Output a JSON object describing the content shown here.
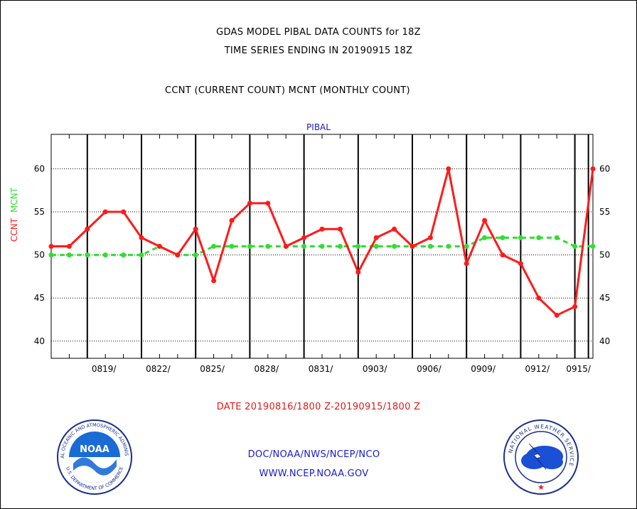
{
  "header": {
    "title_line1": "GDAS MODEL PIBAL DATA COUNTS for 18Z",
    "title_line2": "TIME SERIES ENDING IN 20190915 18Z",
    "subtitle": "CCNT (CURRENT COUNT) MCNT (MONTHLY COUNT)"
  },
  "panel_label": "PIBAL",
  "ylabel": {
    "ccnt": "CCNT",
    "mcnt": "MCNT"
  },
  "date_range": "DATE 20190816/1800 Z-20190915/1800 Z",
  "footer": {
    "org": "DOC/NOAA/NWS/NCEP/NCO",
    "url": "WWW.NCEP.NOAA.GOV"
  },
  "logos": {
    "noaa_text": "NOAA",
    "noaa_ring_top": "NATIONAL OCEANIC AND ATMOSPHERIC ADMINISTRATION",
    "noaa_ring_bottom": "U.S. DEPARTMENT OF COMMERCE",
    "nws_ring": "NATIONAL WEATHER SERVICE"
  },
  "colors": {
    "ccnt": "#ff1a1a",
    "mcnt": "#33dd33",
    "axis_text": "#000000",
    "panel_label": "#1a1acc"
  },
  "chart_data": {
    "type": "line",
    "title": "GDAS MODEL PIBAL DATA COUNTS for 18Z",
    "x": [
      "0816",
      "0817",
      "0818",
      "0819",
      "0820",
      "0821",
      "0822",
      "0823",
      "0824",
      "0825",
      "0826",
      "0827",
      "0828",
      "0829",
      "0830",
      "0831",
      "0901",
      "0902",
      "0903",
      "0904",
      "0905",
      "0906",
      "0907",
      "0908",
      "0909",
      "0910",
      "0911",
      "0912",
      "0913",
      "0914",
      "0915"
    ],
    "xtick_labels": [
      "0819/",
      "0822/",
      "0825/",
      "0828/",
      "0831/",
      "0903/",
      "0906/",
      "0909/",
      "0912/",
      "0915/"
    ],
    "ytick_values": [
      40,
      45,
      50,
      55,
      60
    ],
    "ylim": [
      38,
      64
    ],
    "grid": true,
    "series": [
      {
        "name": "CCNT",
        "values": [
          51,
          51,
          53,
          55,
          55,
          52,
          51,
          50,
          53,
          47,
          54,
          56,
          56,
          51,
          52,
          53,
          53,
          48,
          52,
          53,
          51,
          52,
          60,
          49,
          54,
          50,
          49,
          45,
          43,
          44,
          60
        ]
      },
      {
        "name": "MCNT",
        "values": [
          50,
          50,
          50,
          50,
          50,
          50,
          51,
          50,
          50,
          51,
          51,
          51,
          51,
          51,
          51,
          51,
          51,
          51,
          51,
          51,
          51,
          51,
          51,
          51,
          52,
          52,
          52,
          52,
          52,
          51,
          51
        ]
      }
    ]
  }
}
